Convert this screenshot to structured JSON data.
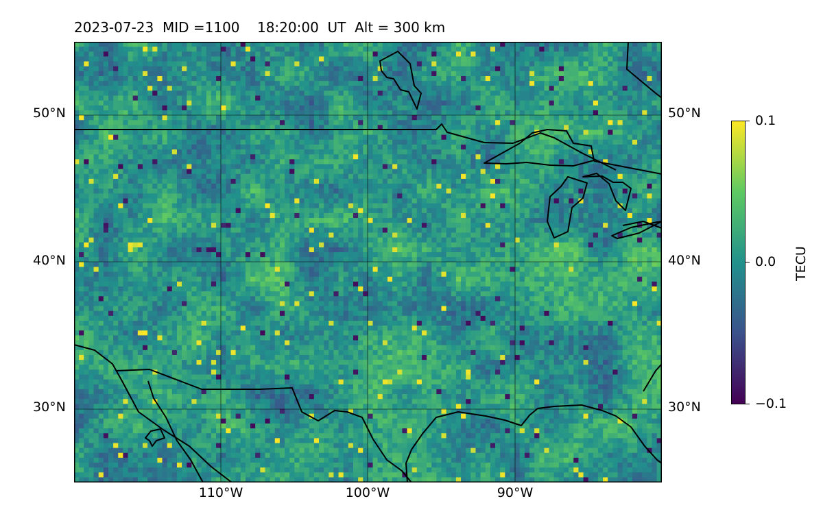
{
  "title": {
    "date": "2023-07-23",
    "mid_label": "MID =1100",
    "time": "18:20:00",
    "time_unit": "UT",
    "altitude_label": "Alt = 300 km"
  },
  "map": {
    "projection": "equirectangular",
    "lon_range": [
      -120,
      -80
    ],
    "lat_range": [
      25,
      55
    ],
    "gridlines": true,
    "lat_ticks_left": [
      "50°N",
      "40°N",
      "30°N"
    ],
    "lat_ticks_right": [
      "50°N",
      "40°N",
      "30°N"
    ],
    "lon_ticks": [
      "110°W",
      "100°W",
      "90°W"
    ],
    "features": [
      "coastlines",
      "country borders",
      "Great Lakes"
    ]
  },
  "colorbar": {
    "label": "TECU",
    "colormap": "viridis",
    "min_label": "−0.1",
    "mid_label": "0.0",
    "max_label": "0.1",
    "range": [
      -0.1,
      0.1
    ],
    "colors": [
      "#440154",
      "#3b528b",
      "#21918c",
      "#5ec962",
      "#fde725"
    ]
  },
  "chart_data": {
    "type": "heatmap",
    "title": "2023-07-23  MID =1100    18:20:00  UT  Alt = 300 km",
    "xlabel": "",
    "ylabel": "",
    "x_range": [
      -120,
      -80
    ],
    "y_range": [
      25,
      55
    ],
    "x_ticks": [
      -110,
      -100,
      -90
    ],
    "y_ticks": [
      30,
      40,
      50
    ],
    "value_range": [
      -0.1,
      0.1
    ],
    "value_unit": "TECU",
    "field": "near-zero noisy TEC perturbation field, mostly teal/green with scattered yellow (positive) and dark purple (negative) cells",
    "legend": "colorbar right"
  }
}
